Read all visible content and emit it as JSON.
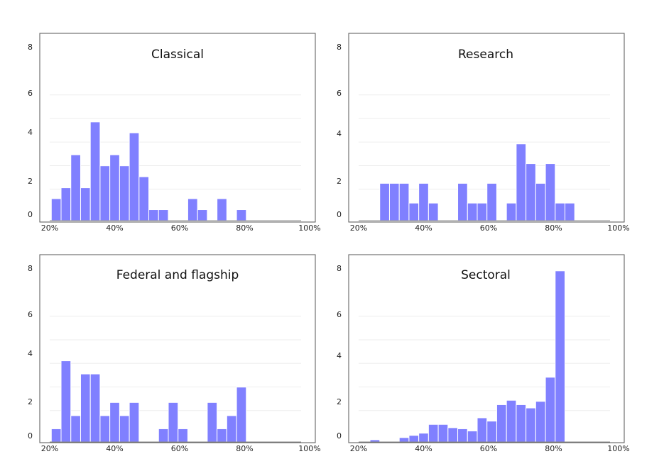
{
  "colors": {
    "bar": "#8080ff",
    "frame": "#555555",
    "grid": "#eeeeee"
  },
  "chart_data": [
    {
      "type": "bar",
      "title": "Classical",
      "x_tick_labels": [
        "20%",
        "40%",
        "60%",
        "80%",
        "100%"
      ],
      "y_tick_labels": [
        "0",
        "2",
        "4",
        "6",
        "8"
      ],
      "bins": [
        {
          "x": 22,
          "y": 1
        },
        {
          "x": 25,
          "y": 1.5
        },
        {
          "x": 28,
          "y": 3
        },
        {
          "x": 31,
          "y": 1.5
        },
        {
          "x": 34,
          "y": 4.5
        },
        {
          "x": 37,
          "y": 2.5
        },
        {
          "x": 40,
          "y": 3
        },
        {
          "x": 43,
          "y": 2.5
        },
        {
          "x": 46,
          "y": 4
        },
        {
          "x": 49,
          "y": 2
        },
        {
          "x": 52,
          "y": 0.5
        },
        {
          "x": 55,
          "y": 0.5
        },
        {
          "x": 64,
          "y": 1
        },
        {
          "x": 67,
          "y": 0.5
        },
        {
          "x": 73,
          "y": 1
        },
        {
          "x": 79,
          "y": 0.5
        }
      ]
    },
    {
      "type": "bar",
      "title": "Research",
      "x_tick_labels": [
        "20%",
        "40%",
        "60%",
        "80%",
        "100%"
      ],
      "y_tick_labels": [
        "0",
        "2",
        "4",
        "6",
        "8"
      ],
      "bins": [
        {
          "x": 28,
          "y": 1.7
        },
        {
          "x": 31,
          "y": 1.7
        },
        {
          "x": 34,
          "y": 1.7
        },
        {
          "x": 37,
          "y": 0.8
        },
        {
          "x": 40,
          "y": 1.7
        },
        {
          "x": 43,
          "y": 0.8
        },
        {
          "x": 52,
          "y": 1.7
        },
        {
          "x": 55,
          "y": 0.8
        },
        {
          "x": 58,
          "y": 0.8
        },
        {
          "x": 61,
          "y": 1.7
        },
        {
          "x": 67,
          "y": 0.8
        },
        {
          "x": 70,
          "y": 3.5
        },
        {
          "x": 73,
          "y": 2.6
        },
        {
          "x": 76,
          "y": 1.7
        },
        {
          "x": 79,
          "y": 2.6
        },
        {
          "x": 82,
          "y": 0.8
        },
        {
          "x": 85,
          "y": 0.8
        }
      ]
    },
    {
      "type": "bar",
      "title": "Federal and flagship",
      "x_tick_labels": [
        "20%",
        "40%",
        "60%",
        "80%",
        "100%"
      ],
      "y_tick_labels": [
        "0",
        "2",
        "4",
        "6",
        "8"
      ],
      "bins": [
        {
          "x": 22,
          "y": 0.6
        },
        {
          "x": 25,
          "y": 3.7
        },
        {
          "x": 28,
          "y": 1.2
        },
        {
          "x": 31,
          "y": 3.1
        },
        {
          "x": 34,
          "y": 3.1
        },
        {
          "x": 37,
          "y": 1.2
        },
        {
          "x": 40,
          "y": 1.8
        },
        {
          "x": 43,
          "y": 1.2
        },
        {
          "x": 46,
          "y": 1.8
        },
        {
          "x": 55,
          "y": 0.6
        },
        {
          "x": 58,
          "y": 1.8
        },
        {
          "x": 61,
          "y": 0.6
        },
        {
          "x": 70,
          "y": 1.8
        },
        {
          "x": 73,
          "y": 0.6
        },
        {
          "x": 76,
          "y": 1.2
        },
        {
          "x": 79,
          "y": 2.5
        }
      ]
    },
    {
      "type": "bar",
      "title": "Sectoral",
      "x_tick_labels": [
        "20%",
        "40%",
        "60%",
        "80%",
        "100%"
      ],
      "y_tick_labels": [
        "0",
        "2",
        "4",
        "6",
        "8"
      ],
      "bins": [
        {
          "x": 25,
          "y": 0.1
        },
        {
          "x": 34,
          "y": 0.2
        },
        {
          "x": 37,
          "y": 0.3
        },
        {
          "x": 40,
          "y": 0.4
        },
        {
          "x": 43,
          "y": 0.8
        },
        {
          "x": 46,
          "y": 0.8
        },
        {
          "x": 49,
          "y": 0.65
        },
        {
          "x": 52,
          "y": 0.6
        },
        {
          "x": 55,
          "y": 0.5
        },
        {
          "x": 58,
          "y": 1.1
        },
        {
          "x": 61,
          "y": 0.95
        },
        {
          "x": 64,
          "y": 1.7
        },
        {
          "x": 67,
          "y": 1.9
        },
        {
          "x": 70,
          "y": 1.7
        },
        {
          "x": 73,
          "y": 1.55
        },
        {
          "x": 76,
          "y": 1.85
        },
        {
          "x": 79,
          "y": 2.95
        },
        {
          "x": 82,
          "y": 7.8
        }
      ]
    }
  ]
}
